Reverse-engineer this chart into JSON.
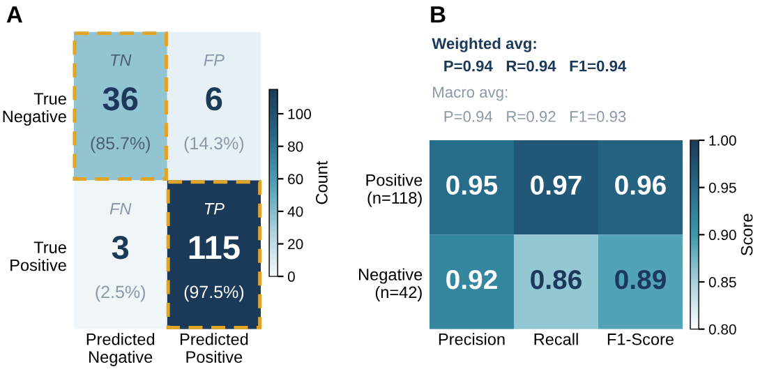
{
  "chart_data": [
    {
      "type": "heatmap",
      "title": "A",
      "clabel": "Count",
      "categories": [
        "Predicted\nNegative",
        "Predicted\nPositive"
      ],
      "y_categories": [
        "True\nNegative",
        "True\nPositive"
      ],
      "cells": [
        [
          36,
          6
        ],
        [
          3,
          115
        ]
      ],
      "cell_labels": [
        [
          "TN\n36\n(85.7%)",
          "FP\n6\n(14.3%)"
        ],
        [
          "FN\n3\n(2.5%)",
          "TP\n115\n(97.5%)"
        ]
      ],
      "clim": [
        0,
        115
      ],
      "cticks": [
        0,
        20,
        40,
        60,
        80,
        100
      ]
    },
    {
      "type": "heatmap",
      "title": "B",
      "clabel": "Score",
      "annotations": [
        "Weighted avg:",
        "P=0.94   R=0.94   F1=0.94",
        "Macro avg:",
        "P=0.94   R=0.92   F1=0.93"
      ],
      "categories": [
        "Precision",
        "Recall",
        "F1-Score"
      ],
      "y_categories": [
        "Positive\n(n=118)",
        "Negative\n(n=42)"
      ],
      "cells": [
        [
          0.95,
          0.97,
          0.96
        ],
        [
          0.92,
          0.86,
          0.89
        ]
      ],
      "data_labels": true,
      "clim": [
        0.8,
        1.0
      ],
      "cticks": [
        {
          "value": 0.8,
          "label": "0.80"
        },
        {
          "value": 0.85,
          "label": "0.85"
        },
        {
          "value": 0.9,
          "label": "0.90"
        },
        {
          "value": 0.95,
          "label": "0.95"
        },
        {
          "value": 1.0,
          "label": "1.00"
        }
      ]
    }
  ]
}
